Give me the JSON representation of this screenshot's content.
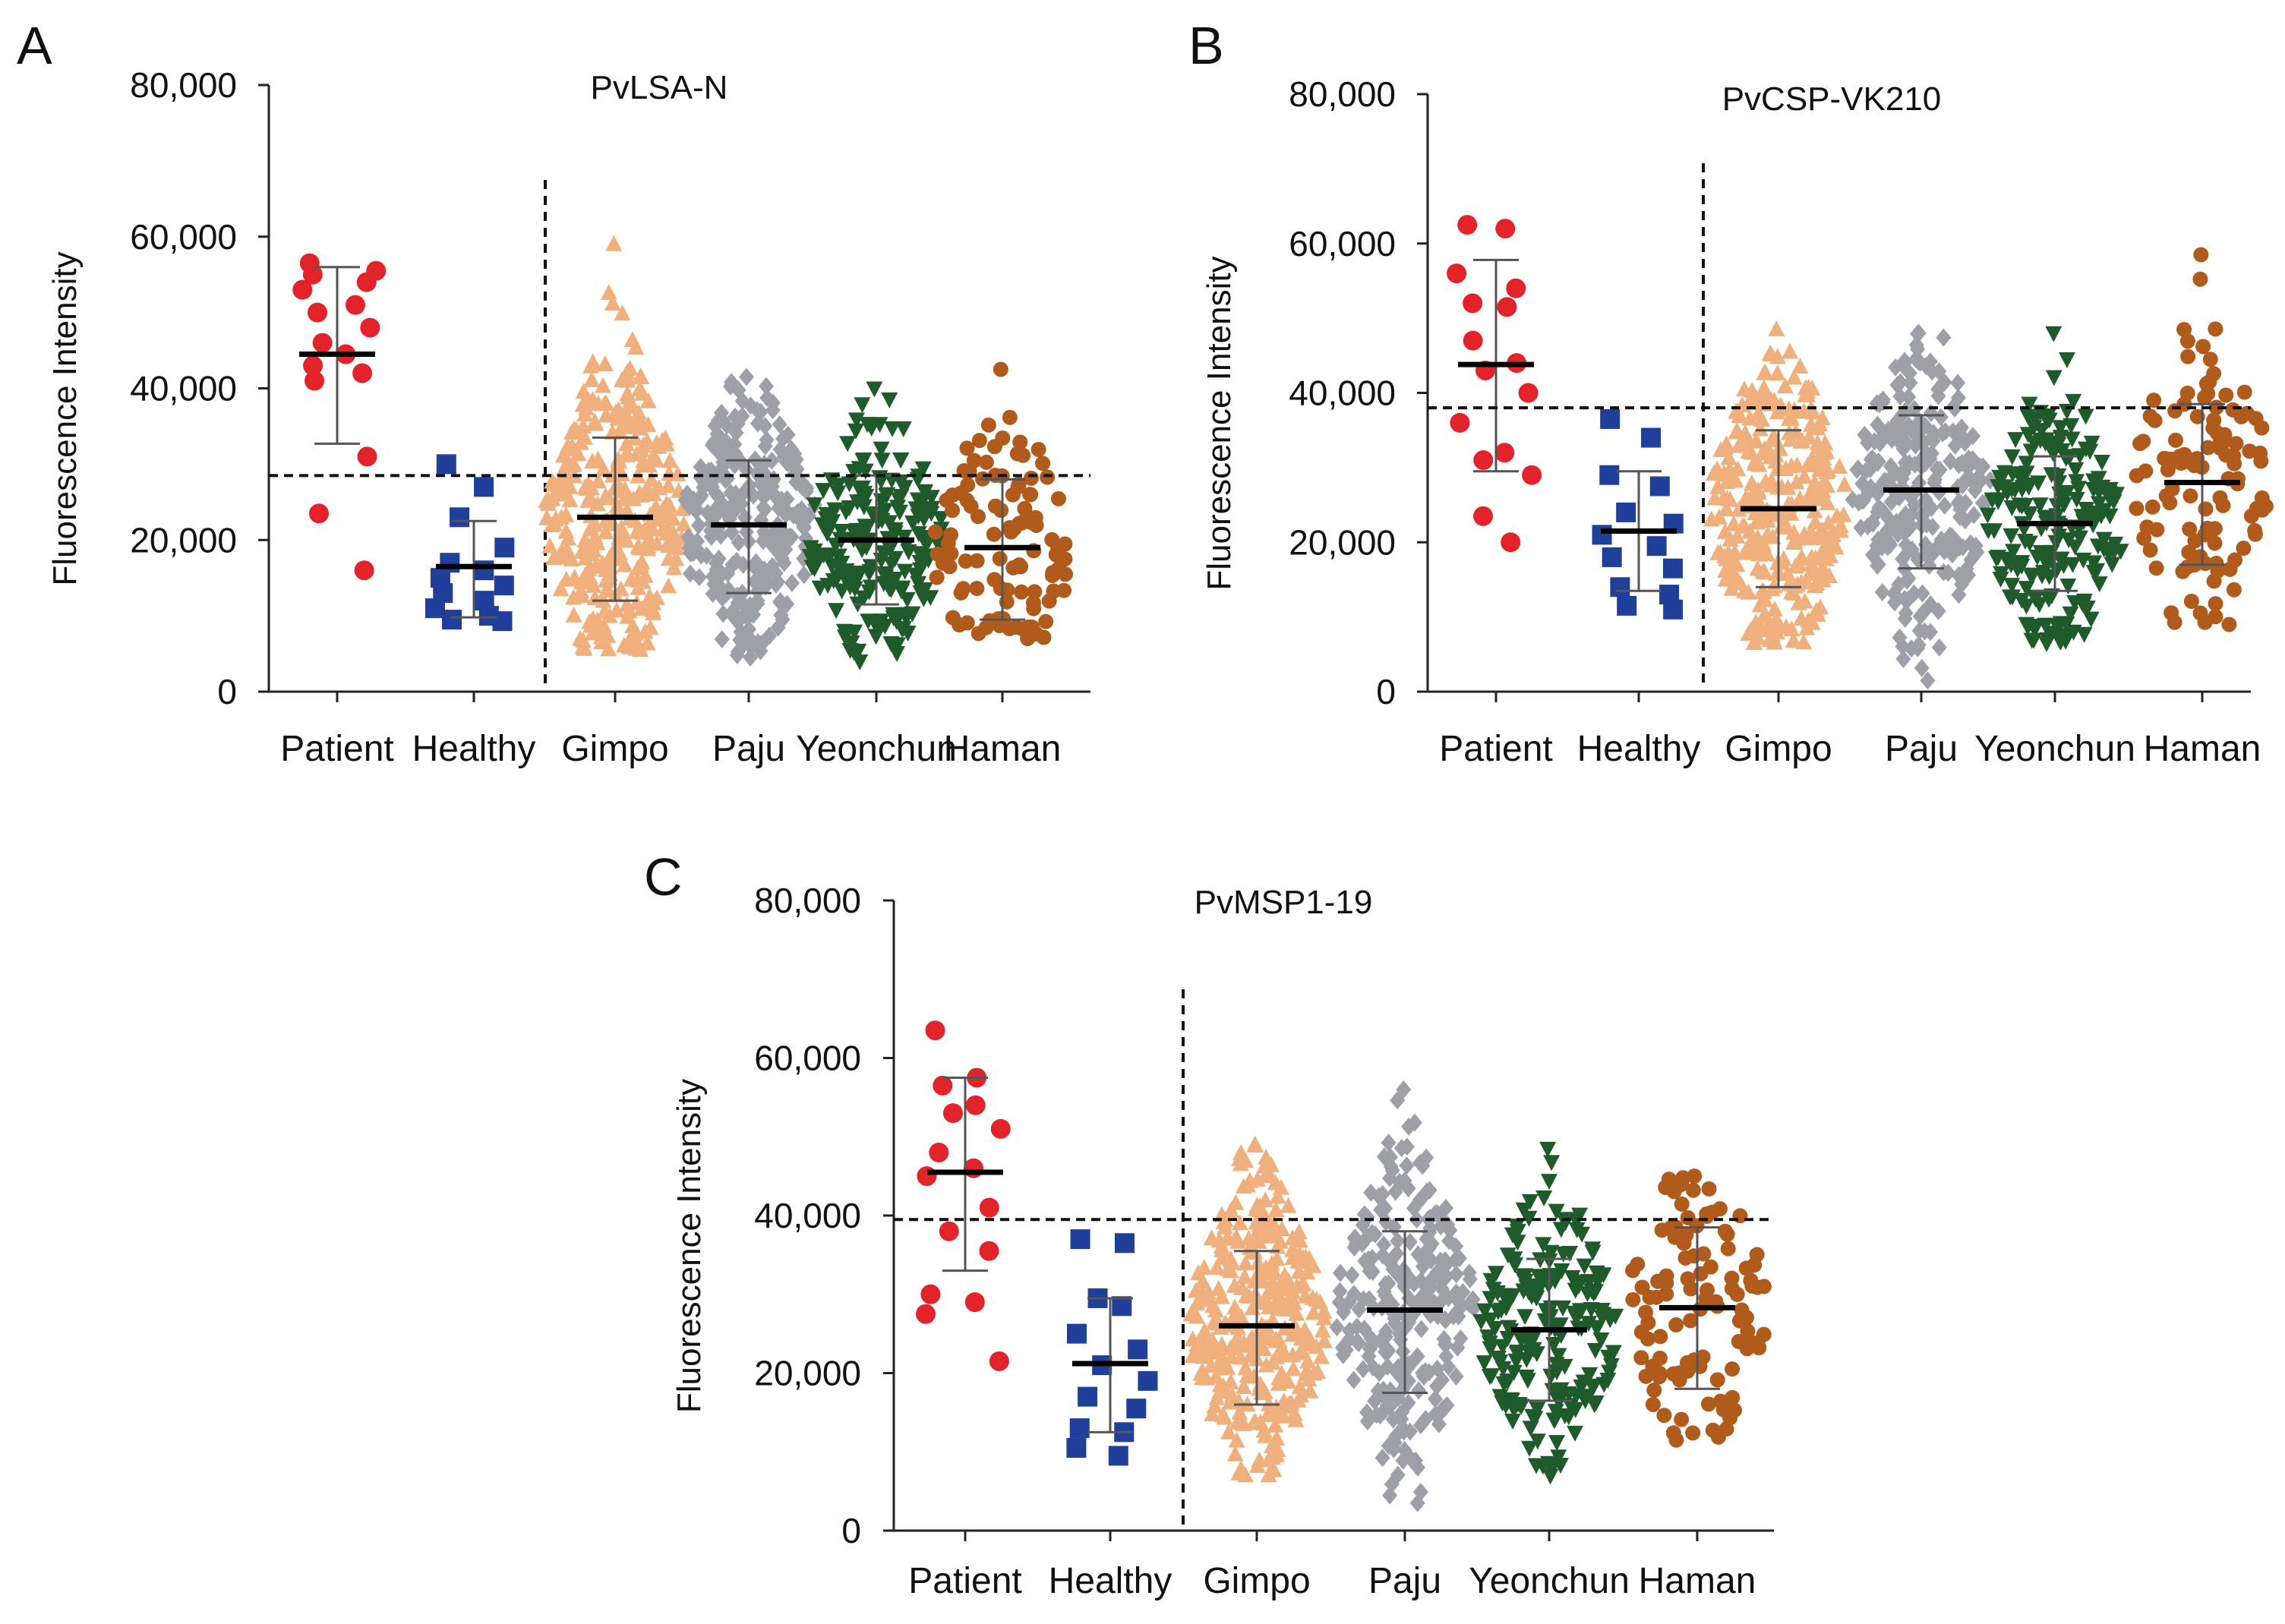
{
  "chart_data": [
    {
      "panel": "A",
      "type": "scatter",
      "title": "PvLSA-N",
      "ylabel": "Fluorescence Intensity",
      "ylim": [
        0,
        80000
      ],
      "yticks": [
        "0",
        "20,000",
        "40,000",
        "60,000",
        "80,000"
      ],
      "cutoff": 28500,
      "categories": [
        "Patient",
        "Healthy",
        "Gimpo",
        "Paju",
        "Yeonchun",
        "Haman"
      ],
      "series": [
        {
          "name": "Patient",
          "color": "#e2232a",
          "marker": "circle",
          "mean": 44500,
          "sd_low": 32700,
          "sd_high": 56000,
          "points": [
            56500,
            55500,
            55000,
            54000,
            53000,
            51000,
            50000,
            48000,
            46000,
            44500,
            43000,
            42000,
            41000,
            31000,
            23500,
            16000
          ]
        },
        {
          "name": "Healthy",
          "color": "#1f3f9a",
          "marker": "square",
          "mean": 16500,
          "sd_low": 9800,
          "sd_high": 22500,
          "points": [
            30000,
            27000,
            23000,
            19000,
            17000,
            16000,
            15000,
            14000,
            13000,
            12000,
            11000,
            10000,
            9500,
            9300
          ]
        },
        {
          "name": "Gimpo",
          "color": "#f0b07e",
          "marker": "triangle-up",
          "mean": 23000,
          "sd_low": 12000,
          "sd_high": 33500,
          "min": 5500,
          "max": 59000,
          "n": 320
        },
        {
          "name": "Paju",
          "color": "#9ea0a8",
          "marker": "diamond",
          "mean": 22000,
          "sd_low": 13000,
          "sd_high": 30500,
          "min": 4500,
          "max": 41500,
          "n": 260
        },
        {
          "name": "Yeonchun",
          "color": "#1f5a2b",
          "marker": "triangle-down",
          "mean": 20000,
          "sd_low": 11500,
          "sd_high": 28500,
          "min": 4000,
          "max": 40000,
          "n": 200
        },
        {
          "name": "Haman",
          "color": "#b05a1c",
          "marker": "circle",
          "mean": 19000,
          "sd_low": 9500,
          "sd_high": 28000,
          "min": 7000,
          "max": 42500,
          "n": 110
        }
      ]
    },
    {
      "panel": "B",
      "type": "scatter",
      "title": "PvCSP-VK210",
      "ylabel": "Fluorescence Intensity",
      "ylim": [
        0,
        80000
      ],
      "yticks": [
        "0",
        "20,000",
        "40,000",
        "60,000",
        "80,000"
      ],
      "cutoff": 38000,
      "categories": [
        "Patient",
        "Healthy",
        "Gimpo",
        "Paju",
        "Yeonchun",
        "Haman"
      ],
      "series": [
        {
          "name": "Patient",
          "color": "#e2232a",
          "marker": "circle",
          "mean": 43800,
          "sd_low": 29500,
          "sd_high": 57800,
          "points": [
            62500,
            62000,
            56000,
            54000,
            52000,
            51500,
            47000,
            44000,
            43000,
            40000,
            36000,
            32000,
            31000,
            29000,
            23500,
            20000
          ]
        },
        {
          "name": "Healthy",
          "color": "#1f3f9a",
          "marker": "square",
          "mean": 21500,
          "sd_low": 13500,
          "sd_high": 29500,
          "points": [
            36500,
            34000,
            29000,
            27500,
            24000,
            22500,
            21000,
            19500,
            18000,
            16500,
            14000,
            13000,
            11500,
            11000
          ]
        },
        {
          "name": "Gimpo",
          "color": "#f0b07e",
          "marker": "triangle-up",
          "mean": 24500,
          "sd_low": 14000,
          "sd_high": 35000,
          "min": 6500,
          "max": 48500,
          "n": 320
        },
        {
          "name": "Paju",
          "color": "#9ea0a8",
          "marker": "diamond",
          "mean": 27000,
          "sd_low": 16500,
          "sd_high": 37000,
          "min": 1500,
          "max": 48000,
          "n": 260
        },
        {
          "name": "Yeonchun",
          "color": "#1f5a2b",
          "marker": "triangle-down",
          "mean": 22500,
          "sd_low": 13500,
          "sd_high": 31500,
          "min": 6500,
          "max": 48000,
          "n": 200
        },
        {
          "name": "Haman",
          "color": "#b05a1c",
          "marker": "circle",
          "mean": 28000,
          "sd_low": 17000,
          "sd_high": 38500,
          "min": 9000,
          "max": 58500,
          "n": 110
        }
      ]
    },
    {
      "panel": "C",
      "type": "scatter",
      "title": "PvMSP1-19",
      "ylabel": "Fluorescence Intensity",
      "ylim": [
        0,
        80000
      ],
      "yticks": [
        "0",
        "20,000",
        "40,000",
        "60,000",
        "80,000"
      ],
      "cutoff": 39500,
      "categories": [
        "Patient",
        "Healthy",
        "Gimpo",
        "Paju",
        "Yeonchun",
        "Haman"
      ],
      "series": [
        {
          "name": "Patient",
          "color": "#e2232a",
          "marker": "circle",
          "mean": 45500,
          "sd_low": 33000,
          "sd_high": 57500,
          "points": [
            63500,
            57500,
            56500,
            54000,
            53000,
            51000,
            48000,
            46000,
            45000,
            41000,
            38000,
            35500,
            30000,
            29000,
            27500,
            21500
          ]
        },
        {
          "name": "Healthy",
          "color": "#1f3f9a",
          "marker": "square",
          "mean": 21200,
          "sd_low": 12500,
          "sd_high": 29500,
          "points": [
            37000,
            36500,
            29500,
            28500,
            25000,
            23000,
            21000,
            19000,
            17000,
            15500,
            13000,
            12500,
            10500,
            9500
          ]
        },
        {
          "name": "Gimpo",
          "color": "#f0b07e",
          "marker": "triangle-up",
          "mean": 26000,
          "sd_low": 16000,
          "sd_high": 35500,
          "min": 7000,
          "max": 49000,
          "n": 320
        },
        {
          "name": "Paju",
          "color": "#9ea0a8",
          "marker": "diamond",
          "mean": 28000,
          "sd_low": 17500,
          "sd_high": 38000,
          "min": 3500,
          "max": 56000,
          "n": 260
        },
        {
          "name": "Yeonchun",
          "color": "#1f5a2b",
          "marker": "triangle-down",
          "mean": 25500,
          "sd_low": 16500,
          "sd_high": 34500,
          "min": 7000,
          "max": 48500,
          "n": 200
        },
        {
          "name": "Haman",
          "color": "#b05a1c",
          "marker": "circle",
          "mean": 28300,
          "sd_low": 18000,
          "sd_high": 38500,
          "min": 11500,
          "max": 45000,
          "n": 110
        }
      ]
    }
  ],
  "panel_letters": {
    "a": "A",
    "b": "B",
    "c": "C"
  }
}
